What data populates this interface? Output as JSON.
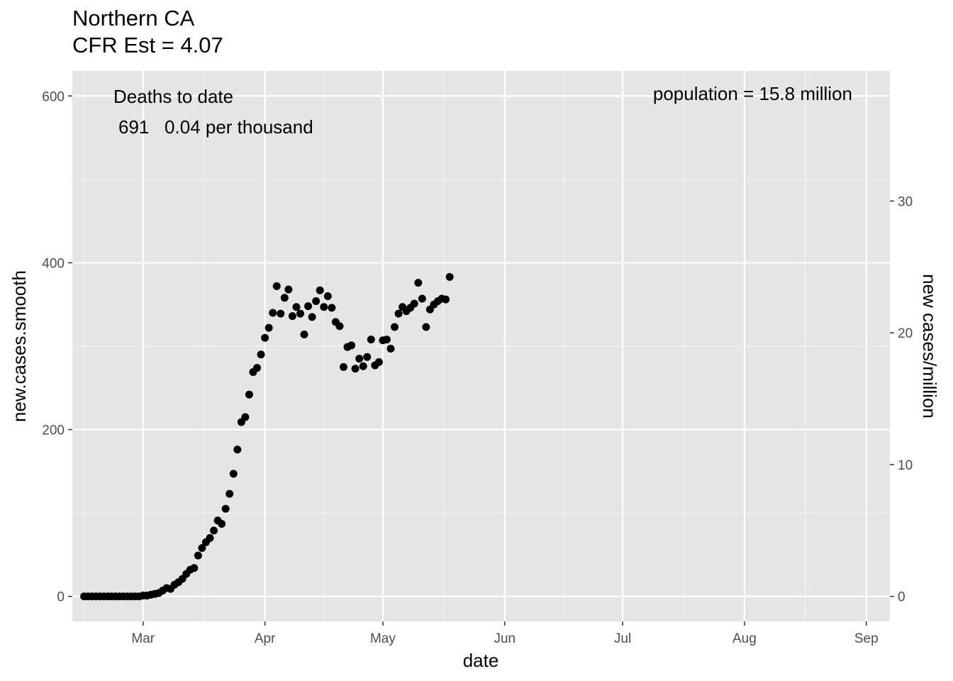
{
  "chart_data": {
    "type": "scatter",
    "title": "Northern CA",
    "subtitle": "CFR Est = 4.07",
    "xlabel": "date",
    "ylabel": "new.cases.smooth",
    "y2label": "new cases/million",
    "xlim": [
      "2020-02-12",
      "2020-09-07"
    ],
    "ylim": [
      -30,
      630
    ],
    "y2_ticks": [
      0,
      10,
      20,
      30
    ],
    "y2_scale_per_million": 15.8,
    "x_ticks": [
      {
        "date": "2020-03-01",
        "label": "Mar"
      },
      {
        "date": "2020-04-01",
        "label": "Apr"
      },
      {
        "date": "2020-05-01",
        "label": "May"
      },
      {
        "date": "2020-06-01",
        "label": "Jun"
      },
      {
        "date": "2020-07-01",
        "label": "Jul"
      },
      {
        "date": "2020-08-01",
        "label": "Aug"
      },
      {
        "date": "2020-09-01",
        "label": "Sep"
      }
    ],
    "y_ticks": [
      0,
      200,
      400,
      600
    ],
    "grid": true,
    "annotations": {
      "deaths_title": "Deaths to date",
      "deaths_line": "691   0.04 per thousand",
      "population": "population = 15.8 million"
    },
    "colors": {
      "panel": "#e5e5e5",
      "grid": "#ffffff",
      "point": "#000000",
      "tick": "#4d4d4d"
    },
    "x_start": "2020-02-15",
    "y": [
      0,
      0,
      0,
      0,
      0,
      0,
      0,
      0,
      0,
      0,
      0,
      0,
      0,
      0,
      0,
      1,
      1,
      2,
      3,
      4,
      7,
      10,
      9,
      14,
      17,
      21,
      27,
      32,
      34,
      49,
      58,
      65,
      70,
      79,
      91,
      87,
      105,
      123,
      147,
      176,
      209,
      215,
      242,
      269,
      274,
      290,
      310,
      322,
      340,
      372,
      339,
      358,
      368,
      336,
      347,
      339,
      314,
      348,
      335,
      354,
      367,
      347,
      360,
      346,
      329,
      324,
      275,
      299,
      301,
      273,
      285,
      276,
      287,
      308,
      277,
      281,
      307,
      308,
      297,
      323,
      339,
      347,
      342,
      346,
      351,
      376,
      357,
      323,
      344,
      350,
      354,
      357,
      356,
      383
    ]
  }
}
